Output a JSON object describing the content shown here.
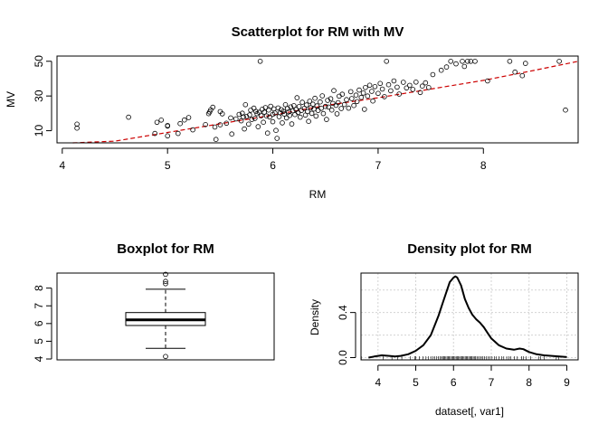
{
  "chart_data": [
    {
      "type": "scatter",
      "title": "Scatterplot for RM with MV",
      "xlabel": "RM",
      "ylabel": "MV",
      "xlim": [
        3.95,
        8.9
      ],
      "ylim": [
        3,
        53
      ],
      "xticks": [
        4,
        5,
        6,
        7,
        8
      ],
      "yticks": [
        10,
        30,
        50
      ],
      "grid": false,
      "trend_line": {
        "style": "dashed",
        "color": "#cc0000",
        "x": [
          4.1,
          4.5,
          5.0,
          5.5,
          6.0,
          6.5,
          7.0,
          7.5,
          8.0,
          8.5,
          8.9
        ],
        "y": [
          1,
          4,
          9,
          14,
          19,
          24.5,
          29,
          34,
          39,
          45,
          50
        ]
      },
      "points": [
        [
          4.14,
          13.8
        ],
        [
          4.14,
          11.5
        ],
        [
          4.63,
          17.8
        ],
        [
          4.88,
          8.4
        ],
        [
          4.9,
          14.8
        ],
        [
          4.94,
          16.1
        ],
        [
          5.0,
          7.0
        ],
        [
          5.0,
          12.7
        ],
        [
          5.0,
          13.0
        ],
        [
          5.1,
          8.4
        ],
        [
          5.12,
          14.1
        ],
        [
          5.16,
          16.2
        ],
        [
          5.2,
          17.6
        ],
        [
          5.24,
          10.5
        ],
        [
          5.36,
          13.5
        ],
        [
          5.39,
          19.8
        ],
        [
          5.4,
          20.8
        ],
        [
          5.41,
          22.0
        ],
        [
          5.43,
          23.5
        ],
        [
          5.45,
          12.1
        ],
        [
          5.46,
          5.0
        ],
        [
          5.5,
          13.4
        ],
        [
          5.5,
          21.0
        ],
        [
          5.52,
          19.7
        ],
        [
          5.56,
          14.3
        ],
        [
          5.6,
          17.4
        ],
        [
          5.61,
          8.1
        ],
        [
          5.65,
          16.8
        ],
        [
          5.68,
          19.4
        ],
        [
          5.7,
          15.7
        ],
        [
          5.71,
          20.1
        ],
        [
          5.72,
          18.0
        ],
        [
          5.73,
          11.0
        ],
        [
          5.74,
          25.0
        ],
        [
          5.75,
          18.2
        ],
        [
          5.77,
          13.8
        ],
        [
          5.78,
          19.1
        ],
        [
          5.79,
          21.8
        ],
        [
          5.8,
          16.5
        ],
        [
          5.82,
          23.0
        ],
        [
          5.83,
          17.1
        ],
        [
          5.84,
          21.1
        ],
        [
          5.85,
          19.8
        ],
        [
          5.86,
          12.3
        ],
        [
          5.87,
          20.6
        ],
        [
          5.88,
          50.0
        ],
        [
          5.89,
          18.6
        ],
        [
          5.9,
          22.4
        ],
        [
          5.91,
          14.9
        ],
        [
          5.92,
          20.7
        ],
        [
          5.93,
          23.3
        ],
        [
          5.94,
          18.5
        ],
        [
          5.95,
          8.6
        ],
        [
          5.96,
          21.9
        ],
        [
          5.97,
          17.9
        ],
        [
          5.98,
          24.1
        ],
        [
          6.0,
          19.4
        ],
        [
          6.0,
          15.2
        ],
        [
          6.01,
          22.6
        ],
        [
          6.02,
          20.2
        ],
        [
          6.03,
          10.2
        ],
        [
          6.04,
          5.6
        ],
        [
          6.05,
          23.1
        ],
        [
          6.06,
          18.1
        ],
        [
          6.07,
          20.3
        ],
        [
          6.08,
          22.1
        ],
        [
          6.09,
          14.5
        ],
        [
          6.1,
          21.2
        ],
        [
          6.11,
          19.6
        ],
        [
          6.12,
          25.0
        ],
        [
          6.13,
          17.4
        ],
        [
          6.14,
          22.8
        ],
        [
          6.15,
          20.8
        ],
        [
          6.16,
          18.8
        ],
        [
          6.17,
          23.7
        ],
        [
          6.18,
          13.9
        ],
        [
          6.19,
          21.5
        ],
        [
          6.2,
          24.4
        ],
        [
          6.21,
          19.3
        ],
        [
          6.22,
          22.2
        ],
        [
          6.23,
          29.0
        ],
        [
          6.24,
          20.5
        ],
        [
          6.25,
          23.9
        ],
        [
          6.26,
          17.8
        ],
        [
          6.27,
          21.6
        ],
        [
          6.28,
          26.4
        ],
        [
          6.3,
          22.9
        ],
        [
          6.31,
          19.0
        ],
        [
          6.32,
          24.8
        ],
        [
          6.33,
          21.0
        ],
        [
          6.34,
          15.4
        ],
        [
          6.35,
          27.0
        ],
        [
          6.36,
          23.2
        ],
        [
          6.37,
          20.0
        ],
        [
          6.38,
          25.3
        ],
        [
          6.39,
          22.5
        ],
        [
          6.4,
          28.7
        ],
        [
          6.41,
          18.4
        ],
        [
          6.42,
          24.3
        ],
        [
          6.43,
          21.7
        ],
        [
          6.45,
          26.6
        ],
        [
          6.46,
          22.9
        ],
        [
          6.47,
          30.1
        ],
        [
          6.48,
          19.9
        ],
        [
          6.5,
          24.0
        ],
        [
          6.51,
          16.5
        ],
        [
          6.52,
          27.5
        ],
        [
          6.53,
          23.6
        ],
        [
          6.55,
          28.4
        ],
        [
          6.56,
          21.9
        ],
        [
          6.57,
          25.7
        ],
        [
          6.58,
          33.1
        ],
        [
          6.6,
          24.6
        ],
        [
          6.61,
          19.7
        ],
        [
          6.62,
          26.2
        ],
        [
          6.63,
          29.9
        ],
        [
          6.65,
          22.8
        ],
        [
          6.66,
          31.0
        ],
        [
          6.68,
          25.1
        ],
        [
          6.7,
          27.9
        ],
        [
          6.72,
          23.0
        ],
        [
          6.74,
          32.5
        ],
        [
          6.75,
          28.5
        ],
        [
          6.77,
          24.5
        ],
        [
          6.79,
          30.5
        ],
        [
          6.8,
          26.8
        ],
        [
          6.82,
          33.4
        ],
        [
          6.84,
          29.2
        ],
        [
          6.86,
          31.7
        ],
        [
          6.87,
          22.3
        ],
        [
          6.88,
          34.9
        ],
        [
          6.9,
          30.0
        ],
        [
          6.92,
          36.2
        ],
        [
          6.94,
          32.7
        ],
        [
          6.95,
          27.1
        ],
        [
          6.97,
          35.4
        ],
        [
          7.0,
          31.5
        ],
        [
          7.02,
          37.2
        ],
        [
          7.04,
          34.0
        ],
        [
          7.06,
          29.6
        ],
        [
          7.08,
          50.0
        ],
        [
          7.1,
          36.5
        ],
        [
          7.12,
          33.0
        ],
        [
          7.15,
          38.7
        ],
        [
          7.18,
          35.1
        ],
        [
          7.2,
          31.1
        ],
        [
          7.24,
          37.9
        ],
        [
          7.27,
          34.6
        ],
        [
          7.3,
          36.1
        ],
        [
          7.33,
          33.8
        ],
        [
          7.36,
          38.0
        ],
        [
          7.4,
          32.0
        ],
        [
          7.42,
          35.7
        ],
        [
          7.45,
          37.6
        ],
        [
          7.48,
          34.9
        ],
        [
          7.52,
          42.3
        ],
        [
          7.6,
          44.8
        ],
        [
          7.65,
          46.7
        ],
        [
          7.69,
          50.0
        ],
        [
          7.74,
          48.5
        ],
        [
          7.8,
          50.0
        ],
        [
          7.82,
          47.0
        ],
        [
          7.85,
          50.0
        ],
        [
          7.88,
          50.0
        ],
        [
          7.92,
          50.0
        ],
        [
          8.04,
          38.7
        ],
        [
          8.25,
          50.0
        ],
        [
          8.3,
          43.8
        ],
        [
          8.37,
          41.7
        ],
        [
          8.4,
          48.8
        ],
        [
          8.72,
          50.0
        ],
        [
          8.78,
          21.9
        ]
      ]
    },
    {
      "type": "box",
      "title": "Boxplot for  RM",
      "ylim": [
        3.95,
        8.85
      ],
      "yticks": [
        4,
        5,
        6,
        7,
        8
      ],
      "stats": {
        "min": 4.6,
        "q1": 5.89,
        "median": 6.21,
        "q3": 6.62,
        "max": 7.94
      },
      "outliers": [
        4.14,
        8.25,
        8.38,
        8.78
      ]
    },
    {
      "type": "line",
      "title": "Density plot for RM",
      "xlabel": "dataset[, var1]",
      "ylabel": "Density",
      "xlim": [
        3.55,
        9.3
      ],
      "ylim": [
        -0.02,
        0.75
      ],
      "xticks": [
        4,
        5,
        6,
        7,
        8,
        9
      ],
      "yticks": [
        0.0,
        0.4
      ],
      "grid": true,
      "x": [
        3.75,
        3.9,
        4.1,
        4.3,
        4.45,
        4.6,
        4.8,
        5.0,
        5.2,
        5.4,
        5.6,
        5.7,
        5.8,
        5.9,
        6.0,
        6.05,
        6.1,
        6.2,
        6.3,
        6.4,
        6.5,
        6.6,
        6.7,
        6.8,
        6.9,
        7.0,
        7.2,
        7.4,
        7.6,
        7.75,
        7.85,
        8.0,
        8.2,
        8.4,
        8.6,
        8.8,
        9.0
      ],
      "y": [
        0.0,
        0.01,
        0.02,
        0.015,
        0.01,
        0.015,
        0.03,
        0.06,
        0.11,
        0.2,
        0.37,
        0.47,
        0.57,
        0.67,
        0.71,
        0.72,
        0.71,
        0.64,
        0.52,
        0.44,
        0.38,
        0.34,
        0.31,
        0.27,
        0.22,
        0.17,
        0.11,
        0.08,
        0.07,
        0.08,
        0.075,
        0.05,
        0.03,
        0.02,
        0.015,
        0.01,
        0.005
      ],
      "rug": [
        3.56,
        4.14,
        4.37,
        4.52,
        4.63,
        4.86,
        4.97,
        5.0,
        5.09,
        5.19,
        5.27,
        5.34,
        5.4,
        5.45,
        5.5,
        5.55,
        5.6,
        5.64,
        5.68,
        5.71,
        5.74,
        5.77,
        5.8,
        5.83,
        5.86,
        5.89,
        5.92,
        5.95,
        5.98,
        6.01,
        6.04,
        6.07,
        6.1,
        6.13,
        6.16,
        6.19,
        6.22,
        6.25,
        6.28,
        6.31,
        6.34,
        6.37,
        6.4,
        6.43,
        6.46,
        6.49,
        6.52,
        6.55,
        6.58,
        6.62,
        6.66,
        6.7,
        6.74,
        6.78,
        6.82,
        6.87,
        6.92,
        6.97,
        7.02,
        7.08,
        7.14,
        7.2,
        7.27,
        7.33,
        7.41,
        7.47,
        7.52,
        7.61,
        7.69,
        7.8,
        7.85,
        7.92,
        8.04,
        8.25,
        8.3,
        8.4,
        8.72,
        8.78
      ]
    }
  ]
}
